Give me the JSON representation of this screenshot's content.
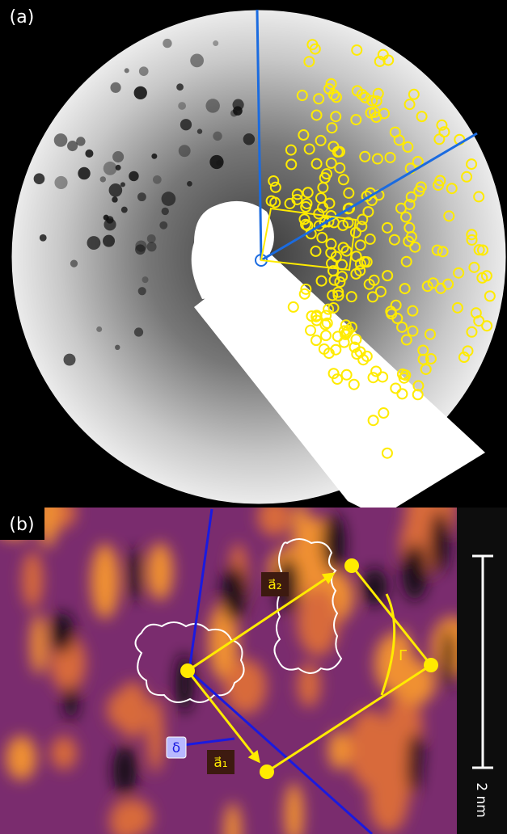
{
  "panel_a": {
    "label": "(a)"
  },
  "panel_b": {
    "label": "(b)",
    "vector_a2": "a⃗₂",
    "vector_a1": "a⃗₁",
    "delta": "δ",
    "gamma": "Γ",
    "scale_bar": "2 nm"
  }
}
